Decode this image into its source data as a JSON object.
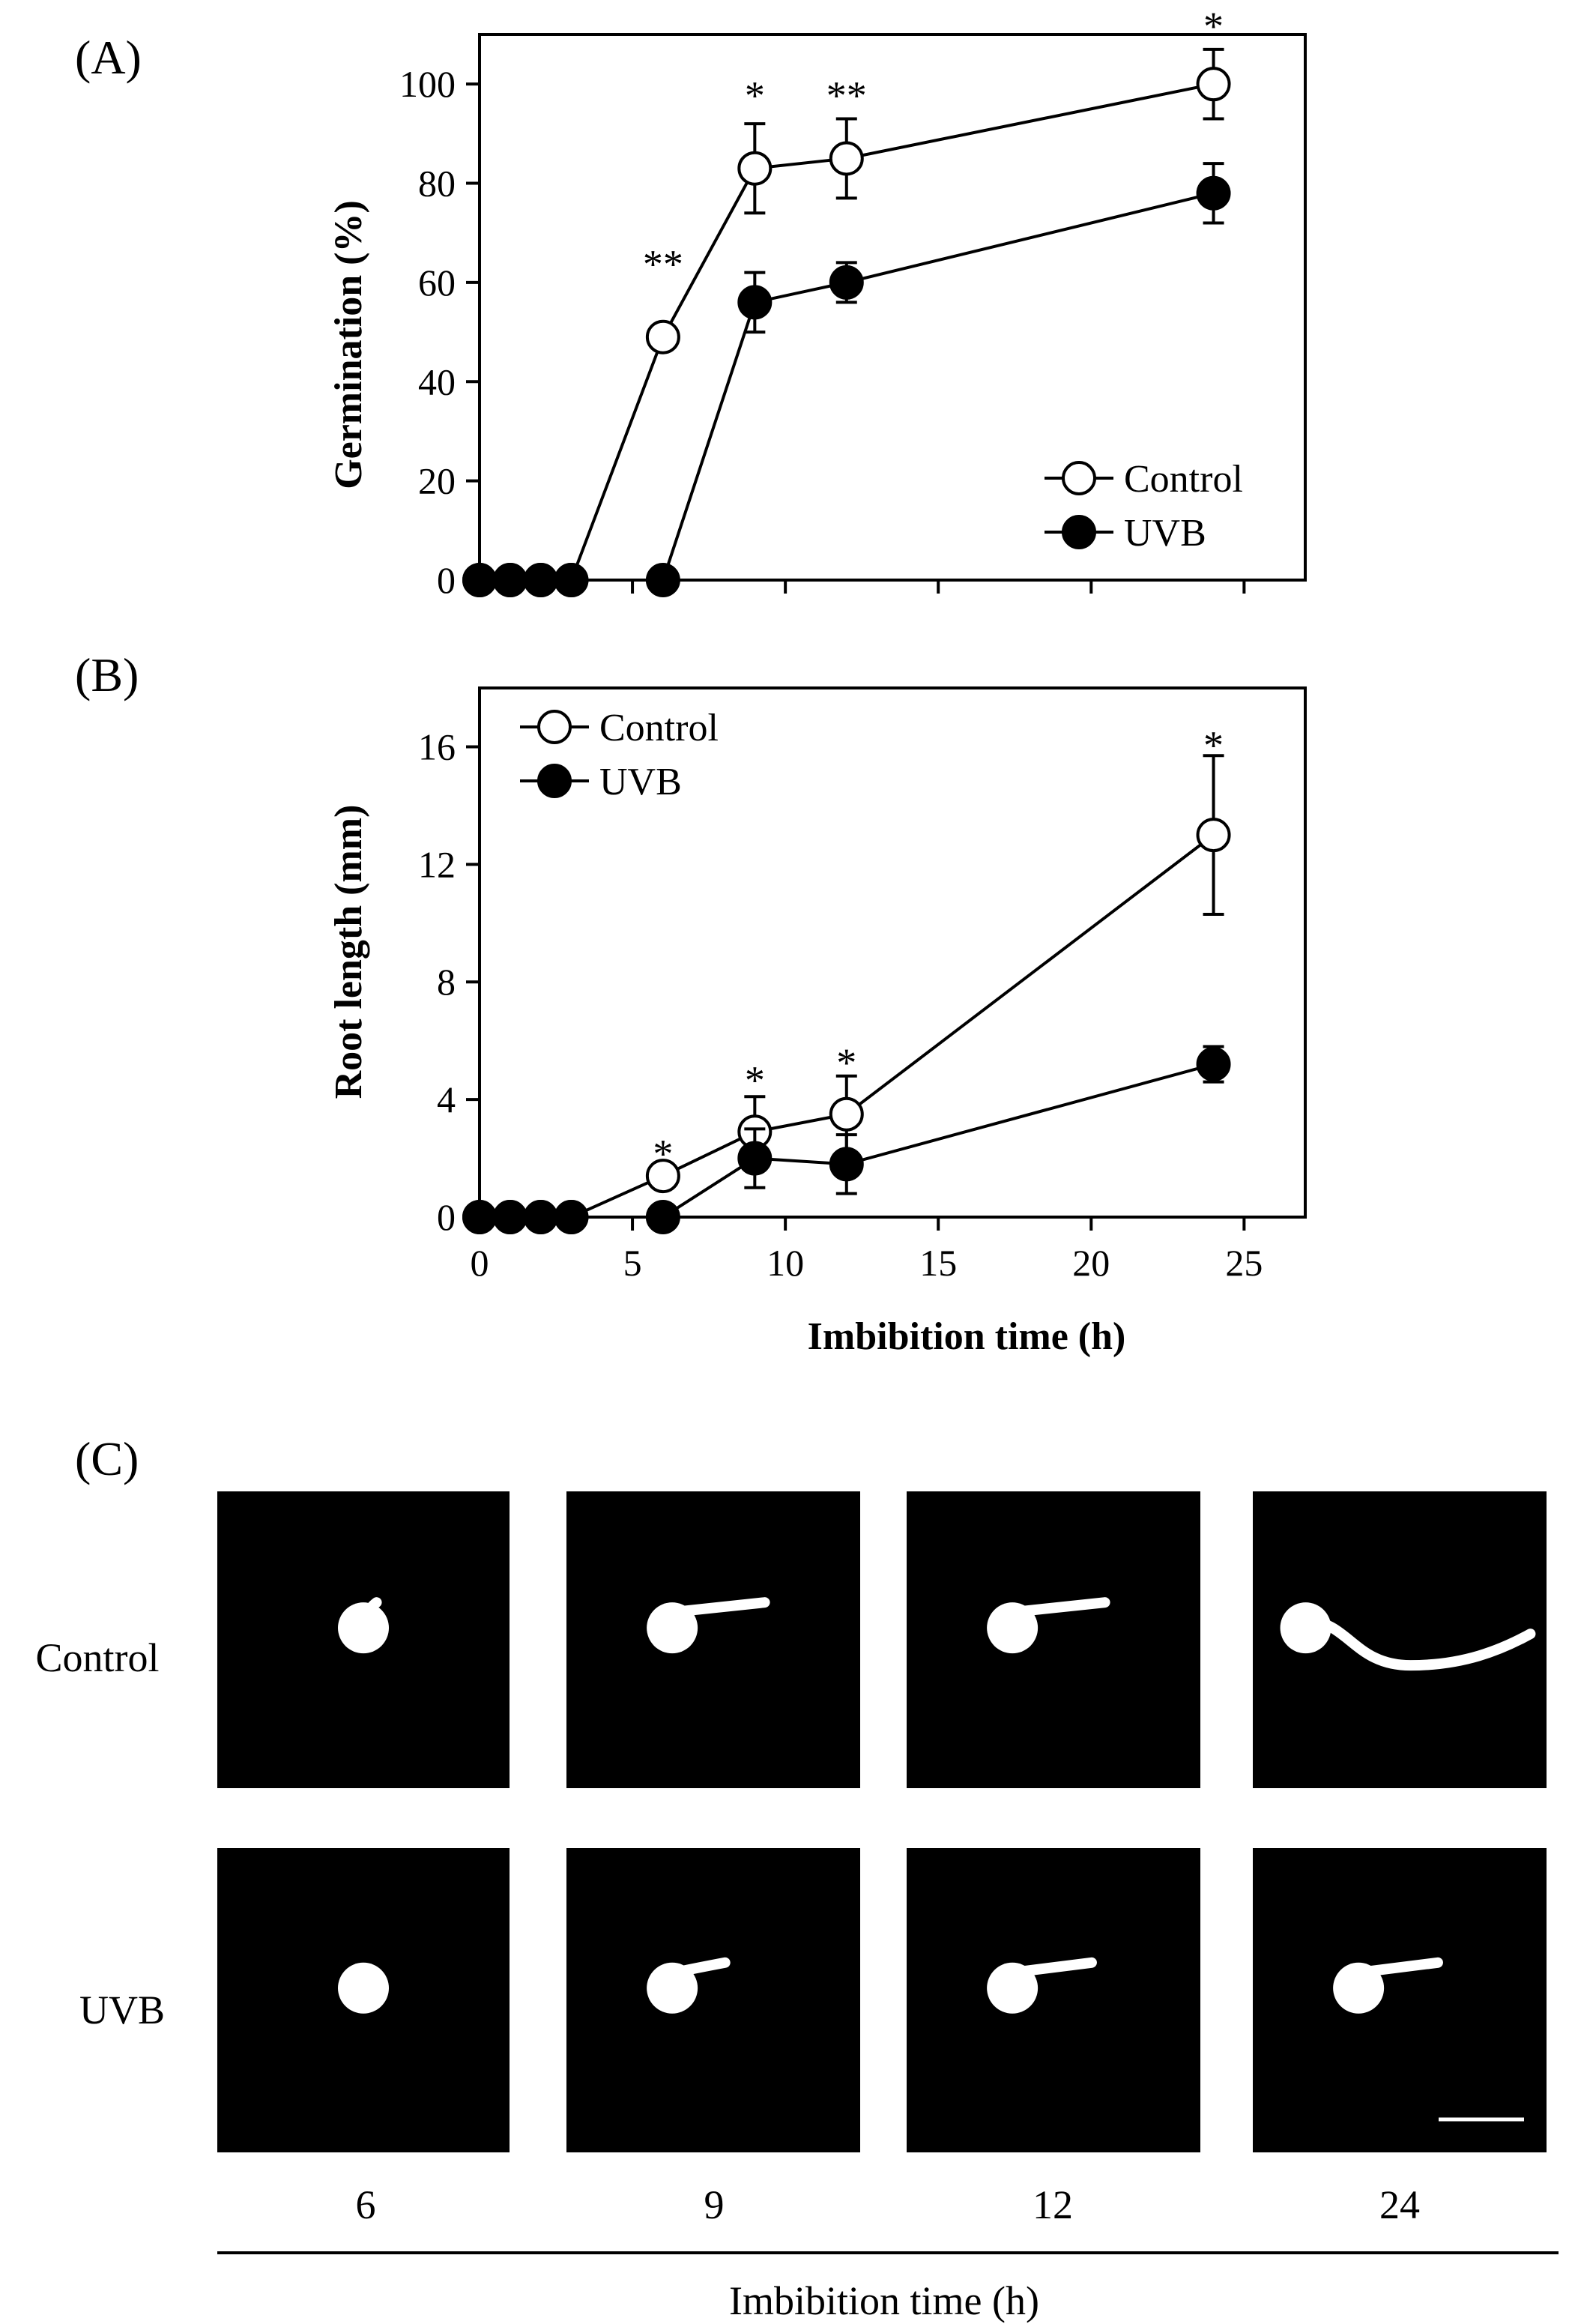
{
  "chart_data": [
    {
      "panel": "(A)",
      "type": "line",
      "xlabel": "",
      "ylabel": "Germination (%)",
      "xlim": [
        0,
        27
      ],
      "ylim": [
        0,
        110
      ],
      "yticks": [
        0,
        20,
        40,
        60,
        80,
        100
      ],
      "xticks": [
        0,
        5,
        10,
        15,
        20,
        25
      ],
      "show_xtick_labels": false,
      "legend": "bottom-right",
      "series": [
        {
          "name": "Control",
          "marker": "open-circle",
          "x": [
            0,
            1,
            2,
            3,
            6,
            9,
            12,
            24
          ],
          "y": [
            0,
            0,
            0,
            0,
            49,
            83,
            85,
            100
          ],
          "err": [
            0,
            0,
            0,
            0,
            0,
            9,
            8,
            7
          ]
        },
        {
          "name": "UVB",
          "marker": "filled-circle",
          "x": [
            0,
            1,
            2,
            3,
            6,
            9,
            12,
            24
          ],
          "y": [
            0,
            0,
            0,
            0,
            0,
            56,
            60,
            78
          ],
          "err": [
            0,
            0,
            0,
            0,
            0,
            6,
            4,
            6
          ]
        }
      ],
      "annotations": [
        {
          "x": 6,
          "y": 64,
          "text": "**"
        },
        {
          "x": 9,
          "y": 98,
          "text": "*"
        },
        {
          "x": 12,
          "y": 98,
          "text": "**"
        },
        {
          "x": 24,
          "y": 112,
          "text": "*"
        }
      ]
    },
    {
      "panel": "(B)",
      "type": "line",
      "xlabel": "Imbibition time (h)",
      "ylabel": "Root length (mm)",
      "xlim": [
        0,
        27
      ],
      "ylim": [
        0,
        18
      ],
      "yticks": [
        0,
        4,
        8,
        12,
        16
      ],
      "xticks": [
        0,
        5,
        10,
        15,
        20,
        25
      ],
      "show_xtick_labels": true,
      "legend": "top-left",
      "series": [
        {
          "name": "Control",
          "marker": "open-circle",
          "x": [
            0,
            1,
            2,
            3,
            6,
            9,
            12,
            24
          ],
          "y": [
            0,
            0,
            0,
            0,
            1.4,
            2.9,
            3.5,
            13.0
          ],
          "err": [
            0,
            0,
            0,
            0,
            0.4,
            1.2,
            1.3,
            2.7
          ]
        },
        {
          "name": "UVB",
          "marker": "filled-circle",
          "x": [
            0,
            1,
            2,
            3,
            6,
            9,
            12,
            24
          ],
          "y": [
            0,
            0,
            0,
            0,
            0,
            2.0,
            1.8,
            5.2
          ],
          "err": [
            0,
            0,
            0,
            0,
            0,
            1.0,
            1.0,
            0.6
          ]
        }
      ],
      "annotations": [
        {
          "x": 6,
          "y": 2.2,
          "text": "*"
        },
        {
          "x": 9,
          "y": 4.7,
          "text": "*"
        },
        {
          "x": 12,
          "y": 5.3,
          "text": "*"
        },
        {
          "x": 24,
          "y": 16.1,
          "text": "*"
        }
      ]
    }
  ],
  "panel_c": {
    "letter": "(C)",
    "rows": [
      "Control",
      "UVB"
    ],
    "times": [
      "6",
      "9",
      "12",
      "24"
    ],
    "xlabel": "Imbibition time (h)",
    "images": [
      {
        "row": "Control",
        "time": "6",
        "root_fraction": 0.05
      },
      {
        "row": "Control",
        "time": "9",
        "root_fraction": 0.35
      },
      {
        "row": "Control",
        "time": "12",
        "root_fraction": 0.35
      },
      {
        "row": "Control",
        "time": "24",
        "root_fraction": 0.85
      },
      {
        "row": "UVB",
        "time": "6",
        "root_fraction": 0.0
      },
      {
        "row": "UVB",
        "time": "9",
        "root_fraction": 0.2
      },
      {
        "row": "UVB",
        "time": "12",
        "root_fraction": 0.3
      },
      {
        "row": "UVB",
        "time": "24",
        "root_fraction": 0.3
      }
    ]
  },
  "colors": {
    "background": "#ffffff",
    "ink": "#000000",
    "photo_bg": "#000000",
    "seed": "#ffffff"
  }
}
